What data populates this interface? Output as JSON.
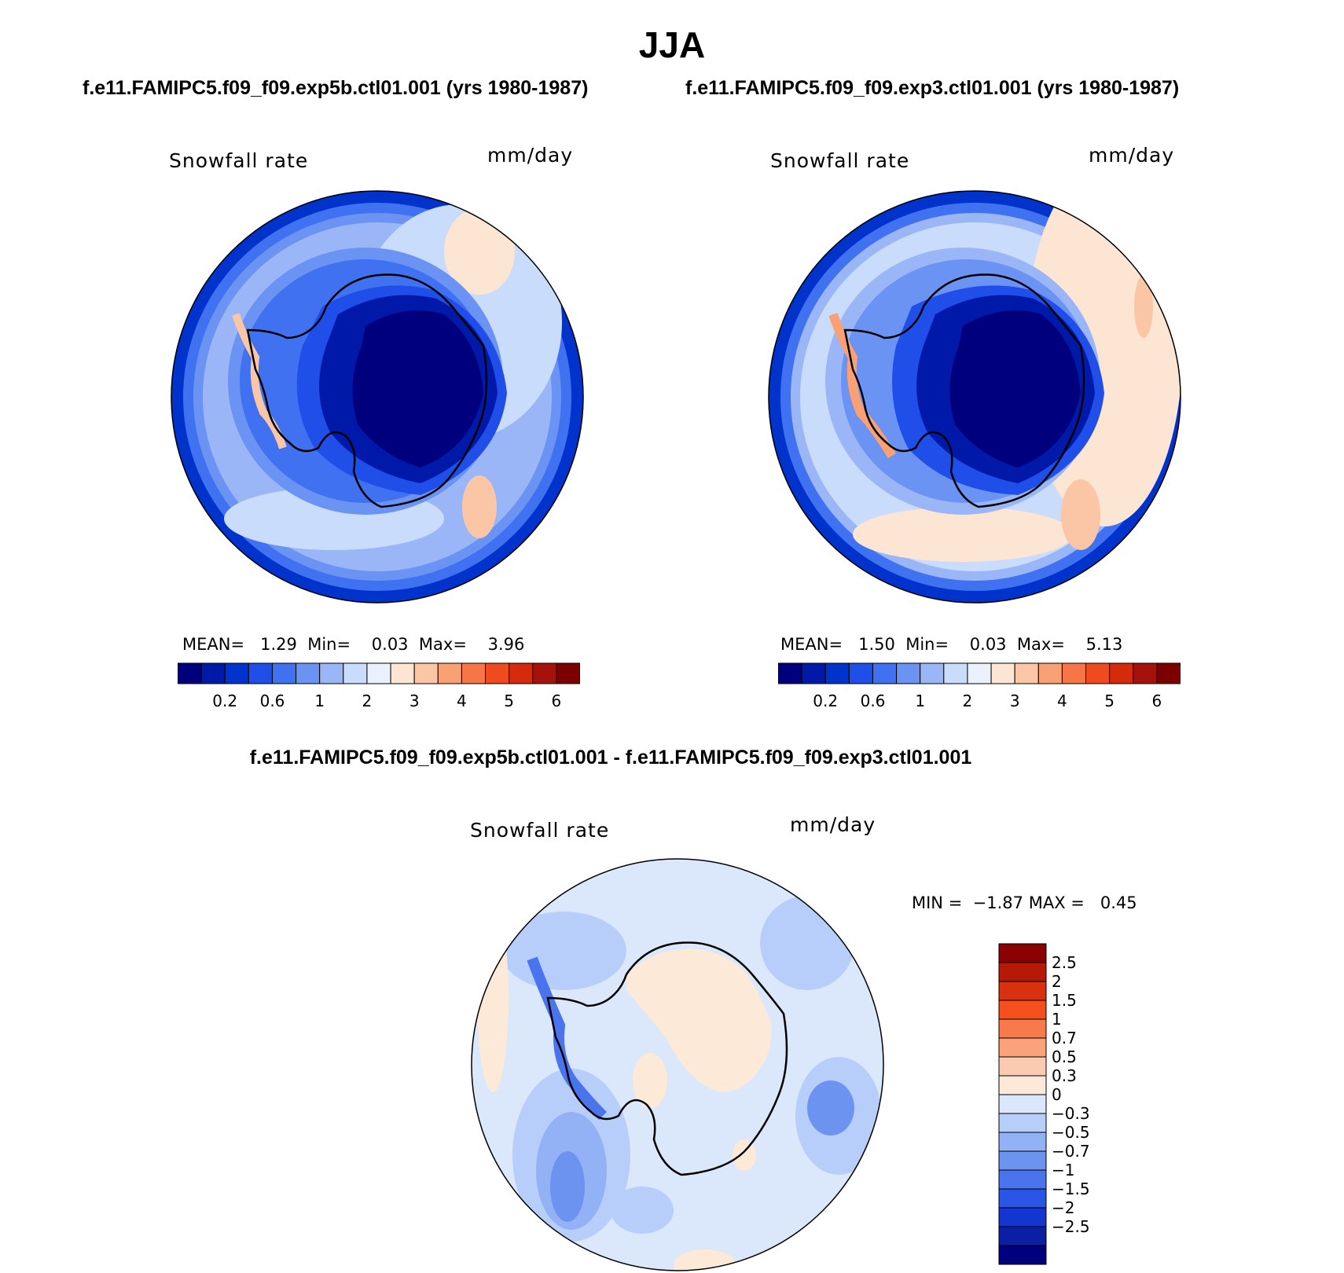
{
  "title": "JJA",
  "panel_left": {
    "case": "f.e11.FAMIPC5.f09_f09.exp5b.ctl01.001 (yrs 1980-1987)",
    "variable": "Snowfall rate",
    "units": "mm/day",
    "mean_label": "MEAN=",
    "mean_value": "1.29",
    "min_label": "Min=",
    "min_value": "0.03",
    "max_label": "Max=",
    "max_value": "3.96"
  },
  "panel_right": {
    "case": "f.e11.FAMIPC5.f09_f09.exp3.ctl01.001 (yrs 1980-1987)",
    "variable": "Snowfall rate",
    "units": "mm/day",
    "mean_label": "MEAN=",
    "mean_value": "1.50",
    "min_label": "Min=",
    "min_value": "0.03",
    "max_label": "Max=",
    "max_value": "5.13"
  },
  "abs_colorbar": {
    "colors": [
      "#00007f",
      "#0019a8",
      "#0032cc",
      "#1f4ee8",
      "#4071f0",
      "#6a93f4",
      "#9ab6f7",
      "#c9dcfb",
      "#e9f1fd",
      "#fde5d3",
      "#fbc6a6",
      "#f9a174",
      "#f77546",
      "#f04a1f",
      "#d62a0c",
      "#a6120b",
      "#7d0000"
    ],
    "tick_labels": [
      "0.2",
      "0.6",
      "1",
      "2",
      "3",
      "4",
      "5",
      "6"
    ]
  },
  "panel_diff": {
    "title": "f.e11.FAMIPC5.f09_f09.exp5b.ctl01.001 - f.e11.FAMIPC5.f09_f09.exp3.ctl01.001",
    "variable": "Snowfall rate",
    "units": "mm/day",
    "min_label": "MIN =",
    "min_value": "−1.87",
    "max_label": "MAX =",
    "max_value": "0.45"
  },
  "diff_colorbar": {
    "colors_top_to_bottom": [
      "#8b0000",
      "#b61a07",
      "#d9300f",
      "#f54f1e",
      "#f87a4c",
      "#f9a27c",
      "#fbcab0",
      "#fde9d8",
      "#dbe8fb",
      "#b8cefa",
      "#93b1f5",
      "#6d93f1",
      "#4a74ee",
      "#2a55e6",
      "#1236cf",
      "#0a1ea6",
      "#00007f"
    ],
    "tick_labels": [
      "2.5",
      "2",
      "1.5",
      "1",
      "0.7",
      "0.5",
      "0.3",
      "0",
      "−0.3",
      "−0.5",
      "−0.7",
      "−1",
      "−1.5",
      "−2",
      "−2.5"
    ]
  }
}
